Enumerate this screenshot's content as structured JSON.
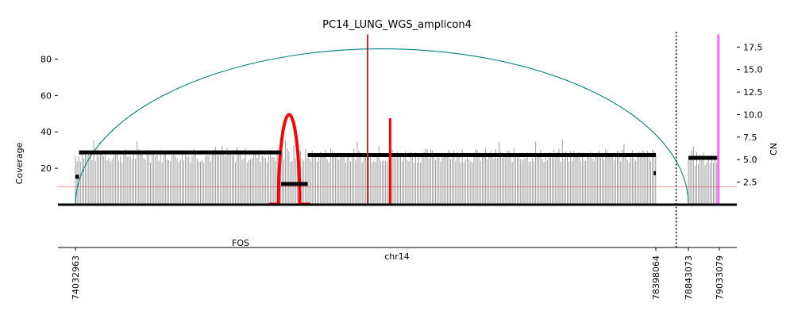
{
  "chart_data": {
    "type": "bar",
    "title": "PC14_LUNG_WGS_amplicon4",
    "xlabel": "chr14",
    "ylabel_left": "Coverage",
    "ylabel_right": "CN",
    "left_ticks": [
      20,
      40,
      60,
      80
    ],
    "left_tick_labels": [
      "20",
      "40",
      "60",
      "80"
    ],
    "right_ticks": [
      2.5,
      5.0,
      7.5,
      10.0,
      12.5,
      15.0,
      17.5
    ],
    "right_tick_labels": [
      "2.5",
      "5.0",
      "7.5",
      "10.0",
      "12.5",
      "15.0",
      "17.5"
    ],
    "left_ylim": [
      0,
      95
    ],
    "right_ylim": [
      0,
      19.2
    ],
    "x_ticks": [
      74032963,
      78398064,
      78843073,
      79033079
    ],
    "x_tick_labels": [
      "74032963",
      "78398064",
      "78843073",
      "79033079"
    ],
    "gene_label": "FOS",
    "coverage_segments": [
      {
        "start": 74032963,
        "end": 78398064,
        "mean_coverage": 28
      },
      {
        "start": 78843073,
        "end": 79033079,
        "mean_coverage": 26
      }
    ],
    "copy_number_segments": [
      {
        "start": 74032963,
        "end": 74060000,
        "cn": 3.1
      },
      {
        "start": 74060000,
        "end": 75580000,
        "cn": 5.8
      },
      {
        "start": 75580000,
        "end": 75780000,
        "cn": 2.3
      },
      {
        "start": 75780000,
        "end": 78398064,
        "cn": 5.5
      },
      {
        "start": 78380000,
        "end": 78398064,
        "cn": 3.5
      },
      {
        "start": 78843073,
        "end": 79033079,
        "cn": 5.2
      }
    ],
    "cn_threshold": 2.0,
    "discordant_edges": [
      {
        "start": 74032963,
        "end": 78843073,
        "height_cn": 17.3,
        "color": "#008080"
      },
      {
        "start": 75560000,
        "end": 75720000,
        "height_cn": 10.0,
        "color": "#ff0000"
      }
    ],
    "breakpoint_lines": [
      {
        "position": 76230000,
        "height_cn": 18.9,
        "color": "#b03030"
      },
      {
        "position": 76400000,
        "height_cn": 9.6,
        "color": "#ff0000"
      },
      {
        "position": 79027000,
        "height_cn": 18.9,
        "color": "#ff66ff"
      }
    ],
    "segment_boundary": 78676000
  }
}
